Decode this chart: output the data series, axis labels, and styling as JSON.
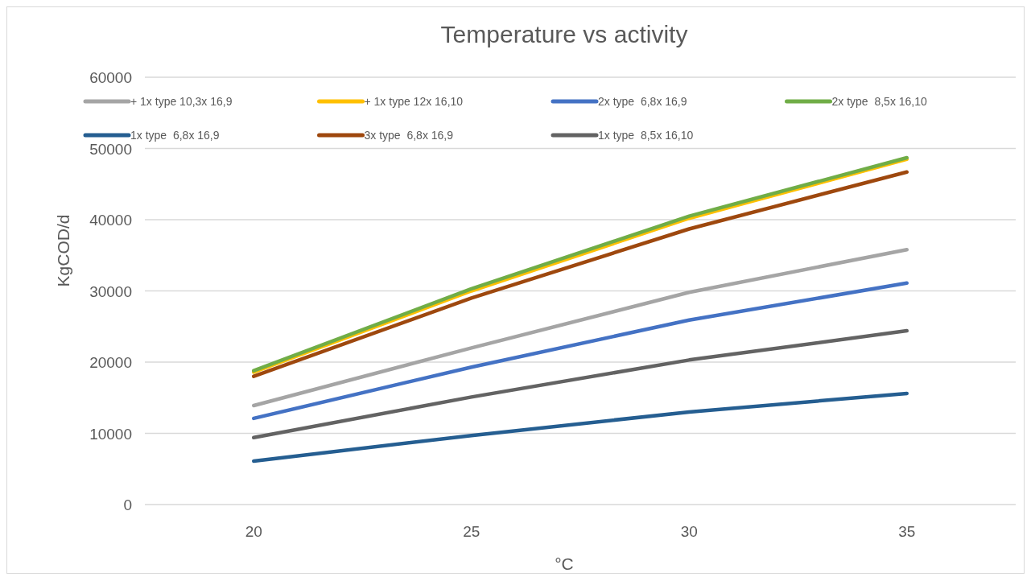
{
  "chart_data": {
    "type": "line",
    "title": "Temperature vs activity",
    "xlabel": "°C",
    "ylabel": "KgCOD/d",
    "categories": [
      "20",
      "25",
      "30",
      "35"
    ],
    "ylim": [
      0,
      60000
    ],
    "yticks": [
      0,
      10000,
      20000,
      30000,
      40000,
      50000,
      60000
    ],
    "grid": "y",
    "legend": "top",
    "marker": "none",
    "line_style": "solid",
    "series": [
      {
        "name": "+ 1x type 10,3x 16,9",
        "color": "#a5a5a5",
        "values": [
          13900,
          22000,
          29800,
          35800
        ]
      },
      {
        "name": "+ 1x type 12x 16,10",
        "color": "#ffc000",
        "values": [
          18600,
          30000,
          40200,
          48500
        ]
      },
      {
        "name": "2x type  6,8x 16,9",
        "color": "#4472c4",
        "values": [
          12100,
          19300,
          25900,
          31100
        ]
      },
      {
        "name": "2x type  8,5x 16,10",
        "color": "#70ad47",
        "values": [
          18800,
          30300,
          40500,
          48700
        ]
      },
      {
        "name": "1x type  6,8x 16,9",
        "color": "#255e91",
        "values": [
          6100,
          9700,
          13000,
          15600
        ]
      },
      {
        "name": "3x type  6,8x 16,9",
        "color": "#9e480e",
        "values": [
          18000,
          29000,
          38700,
          46700
        ]
      },
      {
        "name": "1x type  8,5x 16,10",
        "color": "#636363",
        "values": [
          9400,
          15100,
          20300,
          24400
        ]
      }
    ]
  }
}
